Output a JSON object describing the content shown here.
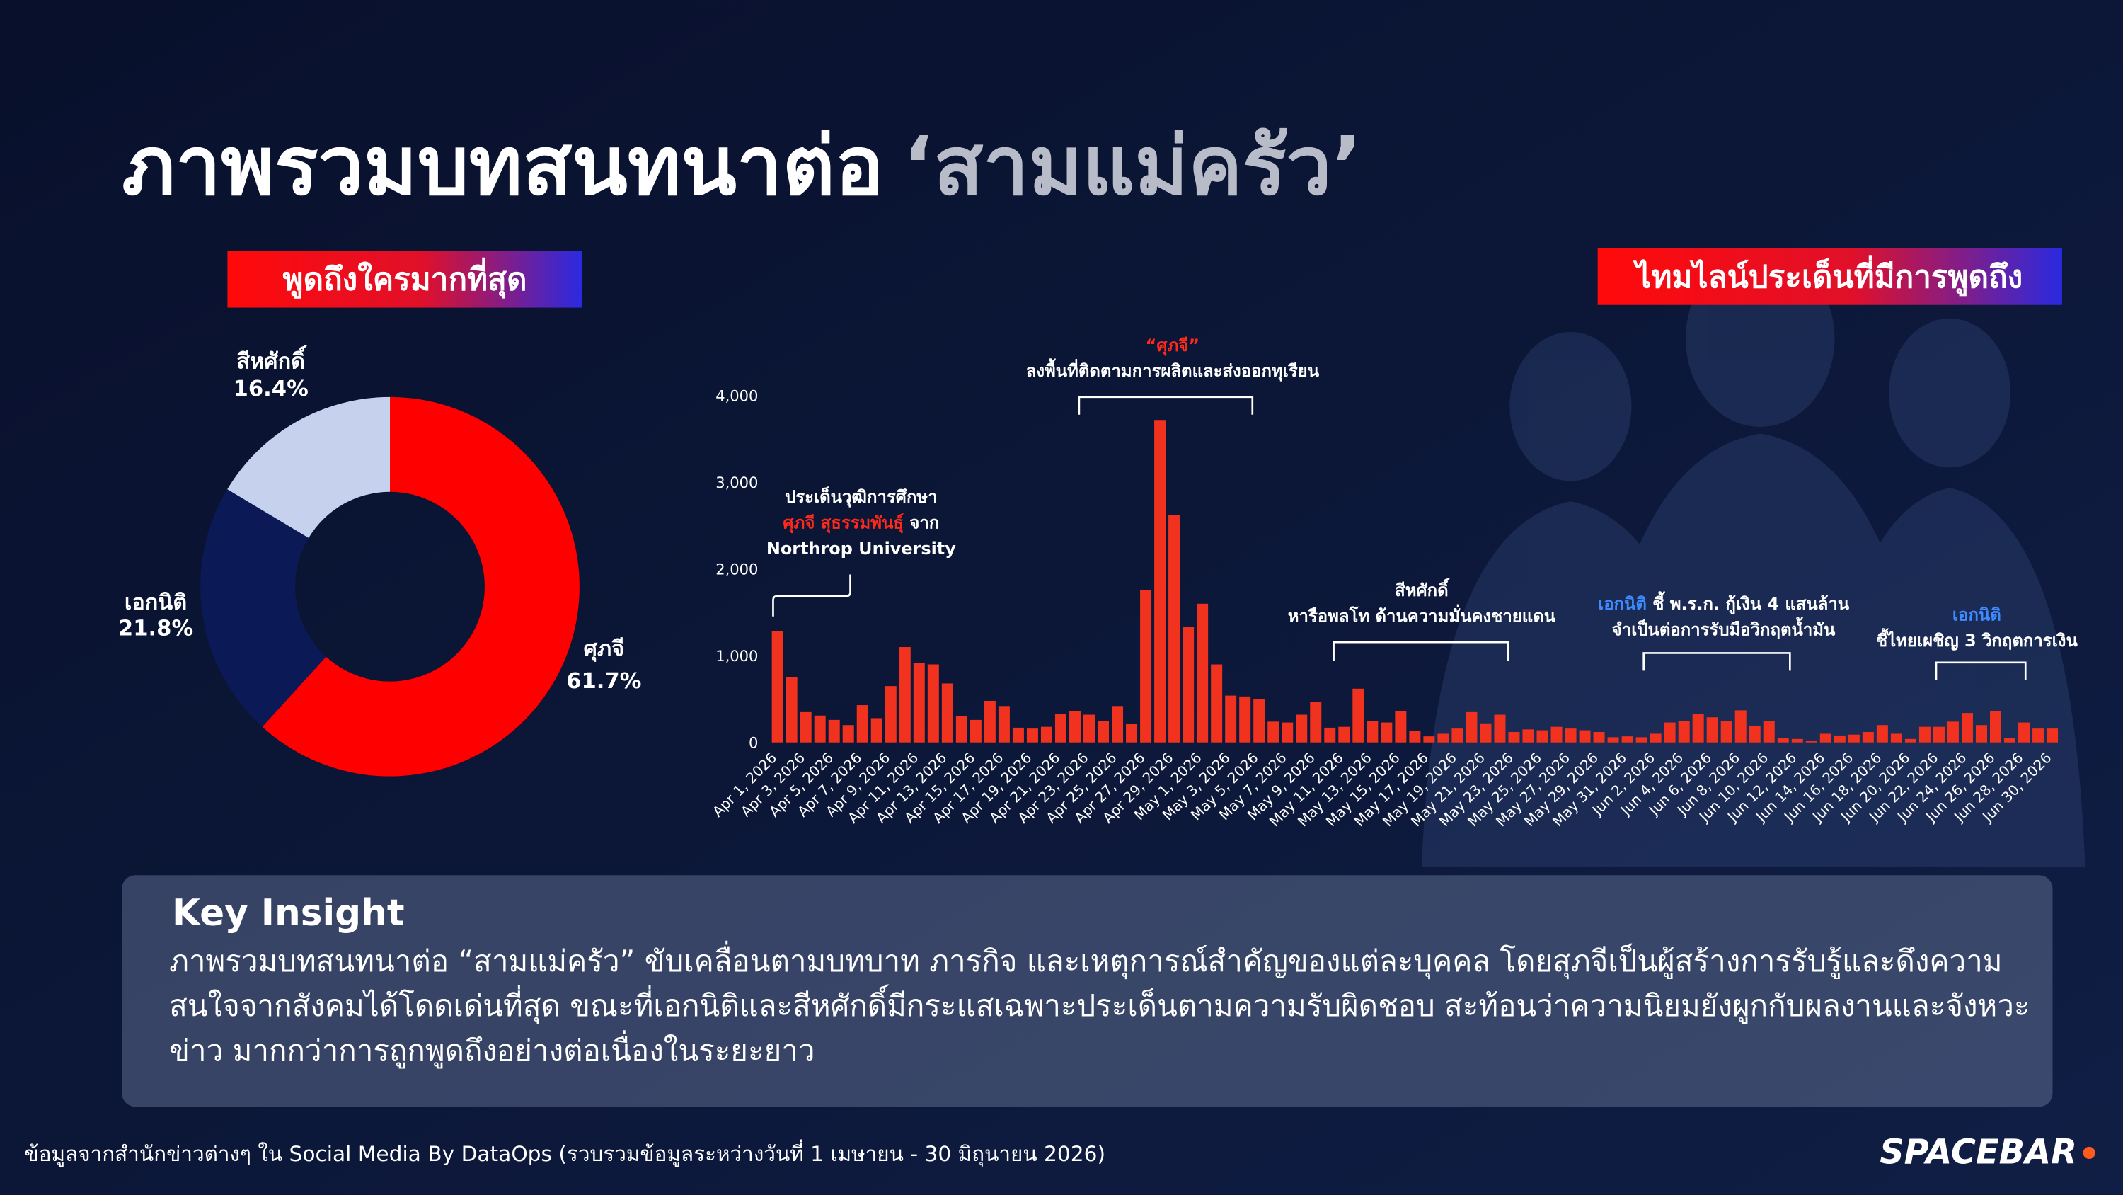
{
  "title": {
    "main": "ภาพรวมบทสนทนาต่อ",
    "highlight": "‘สามแม่ครัว’"
  },
  "badges": [
    "พูดถึงใครมากที่สุด",
    "ไทมไลน์ประเด็นที่มีการพูดถึง"
  ],
  "chart_data": [
    {
      "type": "pie",
      "categories": [
        "ศุภจี",
        "เอกนิติ",
        "สีหศักดิ์"
      ],
      "values": [
        61.7,
        21.8,
        16.4
      ],
      "value_labels": [
        "61.7%",
        "21.8%",
        "16.4%"
      ],
      "colors": [
        "#ff0000",
        "#0b1a57",
        "#c6d1ee"
      ]
    },
    {
      "type": "bar",
      "color": "#f0321e",
      "ylim": [
        0,
        4000
      ],
      "yticks": [
        0,
        {
          "value": 1000,
          "label": "1,000"
        },
        {
          "value": 2000,
          "label": "2,000"
        },
        {
          "value": 3000,
          "label": "3,000"
        },
        {
          "value": 4000,
          "label": "4,000"
        }
      ],
      "categories": [
        "Apr 1, 2026",
        null,
        "Apr 3, 2026",
        null,
        "Apr 5, 2026",
        null,
        "Apr 7, 2026",
        null,
        "Apr 9, 2026",
        null,
        "Apr 11, 2026",
        null,
        "Apr 13, 2026",
        null,
        "Apr 15, 2026",
        null,
        "Apr 17, 2026",
        null,
        "Apr 19, 2026",
        null,
        "Apr 21, 2026",
        null,
        "Apr 23, 2026",
        null,
        "Apr 25, 2026",
        null,
        "Apr 27, 2026",
        null,
        "Apr 29, 2026",
        null,
        "May 1, 2026",
        null,
        "May 3, 2026",
        null,
        "May 5, 2026",
        null,
        "May 7, 2026",
        null,
        "May 9, 2026",
        null,
        "May 11, 2026",
        null,
        "May 13, 2026",
        null,
        "May 15, 2026",
        null,
        "May 17, 2026",
        null,
        "May 19, 2026",
        null,
        "May 21, 2026",
        null,
        "May 23, 2026",
        null,
        "May 25, 2026",
        null,
        "May 27, 2026",
        null,
        "May 29, 2026",
        null,
        "May 31, 2026",
        null,
        "Jun 2, 2026",
        null,
        "Jun 4, 2026",
        null,
        "Jun 6, 2026",
        null,
        "Jun 8, 2026",
        null,
        "Jun 10, 2026",
        null,
        "Jun 12, 2026",
        null,
        "Jun 14, 2026",
        null,
        "Jun 16, 2026",
        null,
        "Jun 18, 2026",
        null,
        "Jun 20, 2026",
        null,
        "Jun 22, 2026",
        null,
        "Jun 24, 2026",
        null,
        "Jun 26, 2026",
        null,
        "Jun 28, 2026",
        null,
        "Jun 30, 2026"
      ],
      "values": [
        1280,
        750,
        350,
        310,
        260,
        200,
        430,
        280,
        650,
        1100,
        920,
        900,
        680,
        300,
        260,
        480,
        420,
        170,
        160,
        180,
        330,
        360,
        320,
        250,
        420,
        210,
        1760,
        3720,
        2620,
        1330,
        1600,
        900,
        540,
        530,
        500,
        240,
        230,
        320,
        470,
        170,
        180,
        620,
        250,
        230,
        360,
        130,
        70,
        100,
        160,
        350,
        220,
        320,
        120,
        150,
        140,
        180,
        160,
        140,
        120,
        60,
        70,
        60,
        100,
        230,
        250,
        330,
        290,
        250,
        370,
        190,
        250,
        50,
        40,
        20,
        100,
        80,
        90,
        120,
        200,
        100,
        40,
        180,
        180,
        240,
        340,
        200,
        360,
        50,
        230,
        160,
        160
      ],
      "annotations": [
        {
          "lines": [
            [
              {
                "text": "ประเด็นวุฒิการศึกษา"
              }
            ],
            [
              {
                "text": "ศุภจี สุธรรมพันธุ์",
                "color": "#ff2a1a"
              },
              {
                "text": " จาก"
              }
            ],
            [
              {
                "text": "Northrop University"
              }
            ]
          ]
        },
        {
          "lines": [
            [
              {
                "text": "“ศุภจี”",
                "color": "#ff2a1a"
              }
            ],
            [
              {
                "text": "ลงพื้นที่ติดตามการผลิตและส่งออกทุเรียน"
              }
            ]
          ]
        },
        {
          "lines": [
            [
              {
                "text": "สีหศักดิ์"
              }
            ],
            [
              {
                "text": "หารือพลโท ด้านความมั่นคงชายแดน"
              }
            ]
          ]
        },
        {
          "lines": [
            [
              {
                "text": "เอกนิติ",
                "color": "#3d8bff"
              },
              {
                "text": " ชี้ พ.ร.ก. กู้เงิน 4 แสนล้าน"
              }
            ],
            [
              {
                "text": "จำเป็นต่อการรับมือวิกฤตน้ำมัน"
              }
            ]
          ]
        },
        {
          "lines": [
            [
              {
                "text": "เอกนิติ",
                "color": "#3d8bff"
              }
            ],
            [
              {
                "text": "ชี้ไทยเผชิญ 3 วิกฤตการเงิน"
              }
            ]
          ]
        }
      ]
    }
  ],
  "insight": {
    "heading": "Key Insight",
    "body": "ภาพรวมบทสนทนาต่อ “สามแม่ครัว” ขับเคลื่อนตามบทบาท ภารกิจ และเหตุการณ์สำคัญของแต่ละบุคคล โดยสุภจีเป็นผู้สร้างการรับรู้และดึงความสนใจจากสังคมได้โดดเด่นที่สุด ขณะที่เอกนิติและสีหศักดิ์มีกระแสเฉพาะประเด็นตามความรับผิดชอบ สะท้อนว่าความนิยมยังผูกกับผลงานและจังหวะข่าว มากกว่าการถูกพูดถึงอย่างต่อเนื่องในระยะยาว"
  },
  "footer": {
    "source": "ข้อมูลจากสำนักข่าวต่างๆ ใน Social Media By DataOps (รวบรวมข้อมูลระหว่างวันที่ 1 เมษายน - 30 มิถุนายน 2026)",
    "logo": "SPACEBAR"
  }
}
